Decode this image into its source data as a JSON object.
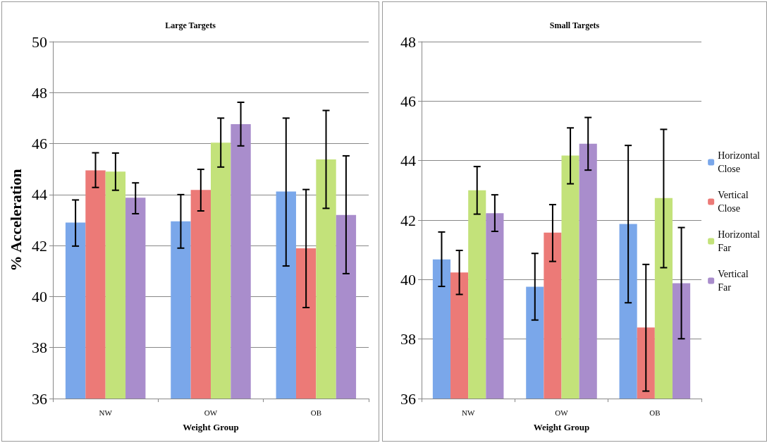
{
  "chart_data": [
    {
      "type": "bar",
      "title": "Large Targets",
      "xlabel": "Weight Group",
      "ylabel": "% Acceleration",
      "categories": [
        "NW",
        "OW",
        "OB"
      ],
      "series": [
        {
          "color": "#7aa7ea",
          "values": [
            42.9,
            42.95,
            44.12
          ],
          "errors": [
            [
              41.98,
              43.79
            ],
            [
              41.9,
              44.0
            ],
            [
              41.2,
              47.0
            ]
          ]
        },
        {
          "color": "#ec7a77",
          "values": [
            44.95,
            44.18,
            41.89
          ],
          "errors": [
            [
              44.28,
              45.64
            ],
            [
              43.36,
              44.99
            ],
            [
              39.57,
              44.2
            ]
          ]
        },
        {
          "color": "#c3e27a",
          "values": [
            44.9,
            46.04,
            45.38
          ],
          "errors": [
            [
              44.17,
              45.63
            ],
            [
              45.08,
              47.0
            ],
            [
              43.46,
              47.3
            ]
          ]
        },
        {
          "color": "#a98dcc",
          "values": [
            43.88,
            46.76,
            43.2
          ],
          "errors": [
            [
              43.25,
              44.46
            ],
            [
              45.91,
              47.62
            ],
            [
              40.9,
              45.52
            ]
          ]
        }
      ],
      "ylim": [
        36,
        50
      ],
      "yticks": [
        36,
        38,
        40,
        42,
        44,
        46,
        48,
        50
      ],
      "grid": "y",
      "legend": false
    },
    {
      "type": "bar",
      "title": "Small Targets",
      "xlabel": "Weight Group",
      "categories": [
        "NW",
        "OW",
        "OB"
      ],
      "series": [
        {
          "name": "Horizontal Close",
          "color": "#7aa7ea",
          "values": [
            40.68,
            39.76,
            41.87
          ],
          "errors": [
            [
              39.77,
              41.6
            ],
            [
              38.64,
              40.88
            ],
            [
              39.22,
              44.51
            ]
          ]
        },
        {
          "name": "Vertical Close",
          "color": "#ec7a77",
          "values": [
            40.24,
            41.58,
            38.39
          ],
          "errors": [
            [
              39.5,
              40.98
            ],
            [
              40.61,
              42.52
            ],
            [
              36.25,
              40.51
            ]
          ]
        },
        {
          "name": "Horizontal Far",
          "color": "#c3e27a",
          "values": [
            43.0,
            44.17,
            42.74
          ],
          "errors": [
            [
              42.2,
              43.8
            ],
            [
              43.22,
              45.1
            ],
            [
              40.4,
              45.05
            ]
          ]
        },
        {
          "name": "Vertical Far",
          "color": "#a98dcc",
          "values": [
            42.23,
            44.57,
            39.88
          ],
          "errors": [
            [
              41.62,
              42.85
            ],
            [
              43.68,
              45.45
            ],
            [
              38.01,
              41.75
            ]
          ]
        }
      ],
      "ylim": [
        36,
        48
      ],
      "yticks": [
        36,
        38,
        40,
        42,
        44,
        46,
        48
      ],
      "grid": "y",
      "legend": "right"
    }
  ]
}
